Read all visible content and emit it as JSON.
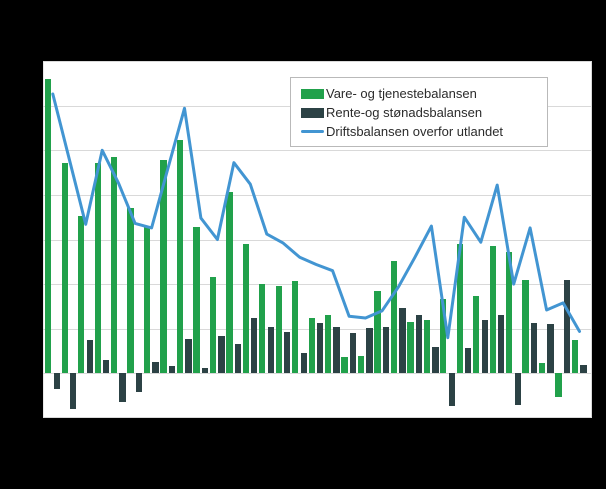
{
  "legend": {
    "items": [
      {
        "label": "Vare- og tjenestebalansen",
        "swatch": "green-bar-swatch"
      },
      {
        "label": "Rente-og stønadsbalansen",
        "swatch": "dark-bar-swatch"
      },
      {
        "label": "Driftsbalansen overfor utlandet",
        "swatch": "blue-line-swatch"
      }
    ]
  },
  "colors": {
    "vare_green": "#21a14b",
    "rente_dark": "#2c4245",
    "drifts_blue": "#4295d2",
    "grid": "#d9d9d9",
    "plot_background": "#ffffff",
    "page_background": "#000000"
  },
  "chart_data": {
    "type": "bar",
    "note": "Grouped quarterly bars with overlaid line; 33 periods; x tick labels not visible in image",
    "ylim": [
      -50,
      350
    ],
    "grid_step": 50,
    "grid": true,
    "legend_position": "top-right",
    "title": "",
    "xlabel": "",
    "ylabel": "",
    "series": [
      {
        "name": "Vare- og tjenestebalansen",
        "type": "bar",
        "color": "#21a14b",
        "values": [
          330,
          236,
          176,
          236,
          243,
          185,
          164,
          239,
          261,
          164,
          108,
          203,
          145,
          100,
          98,
          103,
          62,
          65,
          18,
          19,
          92,
          126,
          58,
          60,
          83,
          145,
          87,
          143,
          136,
          105,
          12,
          -26,
          37
        ]
      },
      {
        "name": "Rente-og stønadsbalansen",
        "type": "bar",
        "color": "#2c4245",
        "values": [
          -17,
          -40,
          37,
          15,
          -32,
          -21,
          13,
          8,
          39,
          6,
          42,
          33,
          62,
          52,
          46,
          23,
          56,
          52,
          45,
          51,
          52,
          73,
          65,
          30,
          -37,
          28,
          60,
          66,
          -35,
          56,
          55,
          105,
          9
        ]
      },
      {
        "name": "Driftsbalansen overfor utlandet",
        "type": "line",
        "color": "#4295d2",
        "values": [
          313,
          240,
          167,
          250,
          213,
          168,
          163,
          230,
          297,
          174,
          150,
          236,
          212,
          156,
          146,
          130,
          122,
          115,
          64,
          62,
          70,
          97,
          130,
          165,
          40,
          175,
          147,
          211,
          100,
          163,
          71,
          79,
          47
        ]
      }
    ]
  }
}
